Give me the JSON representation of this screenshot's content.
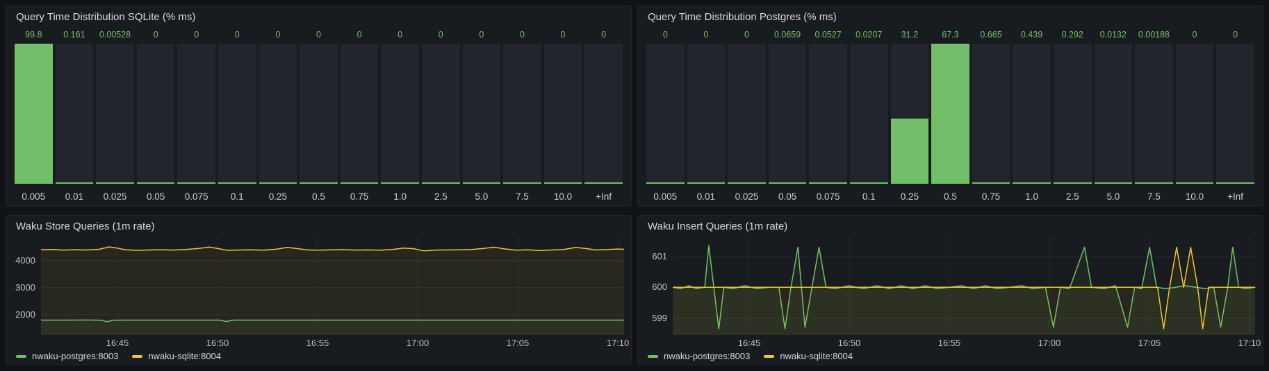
{
  "colors": {
    "page_bg": "#111217",
    "panel_bg": "#181b1f",
    "bar_track_bg": "#22252b",
    "green": "#73bf69",
    "yellow": "#edc82f",
    "title_text": "#d8d9da",
    "axis_text": "#c0c1c7"
  },
  "chart_data": [
    {
      "type": "bar",
      "title": "Query Time Distribution SQLite (% ms)",
      "categories": [
        "0.005",
        "0.01",
        "0.025",
        "0.05",
        "0.075",
        "0.1",
        "0.25",
        "0.5",
        "0.75",
        "1.0",
        "2.5",
        "5.0",
        "7.5",
        "10.0",
        "+Inf"
      ],
      "values": [
        99.8,
        0.161,
        0.00528,
        0,
        0,
        0,
        0,
        0,
        0,
        0,
        0,
        0,
        0,
        0,
        0
      ],
      "value_labels": [
        "99.8",
        "0.161",
        "0.00528",
        "0",
        "0",
        "0",
        "0",
        "0",
        "0",
        "0",
        "0",
        "0",
        "0",
        "0",
        "0"
      ],
      "max": 99.8,
      "bar_color": "#73bf69",
      "xlabel": "",
      "ylabel": ""
    },
    {
      "type": "bar",
      "title": "Query Time Distribution Postgres (% ms)",
      "categories": [
        "0.005",
        "0.01",
        "0.025",
        "0.05",
        "0.075",
        "0.1",
        "0.25",
        "0.5",
        "0.75",
        "1.0",
        "2.5",
        "5.0",
        "7.5",
        "10.0",
        "+Inf"
      ],
      "values": [
        0,
        0,
        0,
        0.0659,
        0.0527,
        0.0207,
        31.2,
        67.3,
        0.665,
        0.439,
        0.292,
        0.0132,
        0.00188,
        0,
        0
      ],
      "value_labels": [
        "0",
        "0",
        "0",
        "0.0659",
        "0.0527",
        "0.0207",
        "31.2",
        "67.3",
        "0.665",
        "0.439",
        "0.292",
        "0.0132",
        "0.00188",
        "0",
        "0"
      ],
      "max": 67.3,
      "bar_color": "#73bf69",
      "xlabel": "",
      "ylabel": ""
    },
    {
      "type": "line",
      "title": "Waku Store Queries (1m rate)",
      "x_domain": [
        1.2,
        30.3
      ],
      "y_domain": [
        1250,
        4900
      ],
      "x_ticks": [
        {
          "t": 5,
          "label": "16:45"
        },
        {
          "t": 10,
          "label": "16:50"
        },
        {
          "t": 15,
          "label": "16:55"
        },
        {
          "t": 20,
          "label": "17:00"
        },
        {
          "t": 25,
          "label": "17:05"
        },
        {
          "t": 30,
          "label": "17:10"
        }
      ],
      "y_ticks": [
        {
          "v": 2000,
          "label": "2000"
        },
        {
          "v": 3000,
          "label": "3000"
        },
        {
          "v": 4000,
          "label": "4000"
        }
      ],
      "series": [
        {
          "name": "nwaku-postgres:8003",
          "color": "#73bf69",
          "points": [
            [
              1.2,
              1800
            ],
            [
              2.4,
              1800
            ],
            [
              3.6,
              1802
            ],
            [
              4.2,
              1798
            ],
            [
              4.5,
              1742
            ],
            [
              4.8,
              1796
            ],
            [
              5.4,
              1800
            ],
            [
              7,
              1800
            ],
            [
              9,
              1801
            ],
            [
              10.1,
              1800
            ],
            [
              10.45,
              1748
            ],
            [
              10.8,
              1799
            ],
            [
              12,
              1800
            ],
            [
              14,
              1801
            ],
            [
              16,
              1799
            ],
            [
              18,
              1800
            ],
            [
              20,
              1801
            ],
            [
              22,
              1799
            ],
            [
              24,
              1800
            ],
            [
              26,
              1801
            ],
            [
              28,
              1799
            ],
            [
              30.3,
              1800
            ]
          ]
        },
        {
          "name": "nwaku-sqlite:8004",
          "color": "#edc82f",
          "points": [
            [
              1.2,
              4410
            ],
            [
              1.8,
              4420
            ],
            [
              2.3,
              4395
            ],
            [
              2.9,
              4410
            ],
            [
              3.5,
              4400
            ],
            [
              4.1,
              4425
            ],
            [
              4.6,
              4515
            ],
            [
              5.0,
              4470
            ],
            [
              5.4,
              4410
            ],
            [
              6.0,
              4385
            ],
            [
              6.6,
              4400
            ],
            [
              7.2,
              4408
            ],
            [
              7.8,
              4395
            ],
            [
              8.4,
              4418
            ],
            [
              9.0,
              4450
            ],
            [
              9.6,
              4510
            ],
            [
              10.1,
              4445
            ],
            [
              10.5,
              4385
            ],
            [
              11.1,
              4400
            ],
            [
              11.7,
              4406
            ],
            [
              12.3,
              4394
            ],
            [
              12.9,
              4425
            ],
            [
              13.5,
              4495
            ],
            [
              14.0,
              4450
            ],
            [
              14.5,
              4402
            ],
            [
              15.1,
              4390
            ],
            [
              15.7,
              4403
            ],
            [
              16.3,
              4412
            ],
            [
              16.9,
              4396
            ],
            [
              17.5,
              4402
            ],
            [
              18.1,
              4392
            ],
            [
              18.7,
              4415
            ],
            [
              19.3,
              4470
            ],
            [
              19.8,
              4448
            ],
            [
              20.3,
              4365
            ],
            [
              20.9,
              4395
            ],
            [
              21.5,
              4402
            ],
            [
              22.1,
              4406
            ],
            [
              22.7,
              4420
            ],
            [
              23.3,
              4455
            ],
            [
              23.8,
              4505
            ],
            [
              24.3,
              4445
            ],
            [
              24.9,
              4392
            ],
            [
              25.5,
              4403
            ],
            [
              26.1,
              4382
            ],
            [
              26.7,
              4400
            ],
            [
              27.3,
              4418
            ],
            [
              27.9,
              4495
            ],
            [
              28.4,
              4452
            ],
            [
              28.9,
              4400
            ],
            [
              29.5,
              4418
            ],
            [
              30.0,
              4435
            ],
            [
              30.3,
              4425
            ]
          ]
        }
      ]
    },
    {
      "type": "line",
      "title": "Waku Insert Queries (1m rate)",
      "x_domain": [
        1.2,
        30.3
      ],
      "y_domain": [
        598.45,
        601.65
      ],
      "x_ticks": [
        {
          "t": 5,
          "label": "16:45"
        },
        {
          "t": 10,
          "label": "16:50"
        },
        {
          "t": 15,
          "label": "16:55"
        },
        {
          "t": 20,
          "label": "17:00"
        },
        {
          "t": 25,
          "label": "17:05"
        },
        {
          "t": 30,
          "label": "17:10"
        }
      ],
      "y_ticks": [
        {
          "v": 599,
          "label": "599"
        },
        {
          "v": 600,
          "label": "600"
        },
        {
          "v": 601,
          "label": "601"
        }
      ],
      "series": [
        {
          "name": "nwaku-postgres:8003",
          "color": "#73bf69",
          "points": [
            [
              1.2,
              600
            ],
            [
              1.6,
              599.95
            ],
            [
              2.0,
              600.05
            ],
            [
              2.4,
              599.95
            ],
            [
              2.8,
              600
            ],
            [
              3.0,
              601.35
            ],
            [
              3.25,
              600
            ],
            [
              3.5,
              598.65
            ],
            [
              3.75,
              600
            ],
            [
              4.2,
              599.95
            ],
            [
              4.8,
              600.05
            ],
            [
              5.4,
              599.95
            ],
            [
              6.0,
              600
            ],
            [
              6.5,
              600
            ],
            [
              6.8,
              598.65
            ],
            [
              7.1,
              600
            ],
            [
              7.45,
              601.3
            ],
            [
              7.8,
              598.7
            ],
            [
              8.15,
              600
            ],
            [
              8.5,
              601.3
            ],
            [
              8.85,
              600
            ],
            [
              9.3,
              599.95
            ],
            [
              10,
              600.05
            ],
            [
              10.7,
              599.95
            ],
            [
              11.4,
              600.05
            ],
            [
              12,
              599.95
            ],
            [
              12.6,
              600.05
            ],
            [
              13.2,
              599.95
            ],
            [
              13.8,
              600.05
            ],
            [
              14.4,
              599.95
            ],
            [
              15,
              600
            ],
            [
              15.6,
              600.05
            ],
            [
              16.2,
              599.95
            ],
            [
              16.8,
              600.05
            ],
            [
              17.4,
              599.95
            ],
            [
              18,
              600
            ],
            [
              18.6,
              600.05
            ],
            [
              19.2,
              599.95
            ],
            [
              19.8,
              600
            ],
            [
              20.2,
              598.7
            ],
            [
              20.55,
              600
            ],
            [
              21,
              599.95
            ],
            [
              21.75,
              601.3
            ],
            [
              22.1,
              600
            ],
            [
              22.7,
              599.95
            ],
            [
              23.3,
              600.05
            ],
            [
              23.9,
              598.7
            ],
            [
              24.25,
              600
            ],
            [
              24.6,
              599.95
            ],
            [
              25.0,
              601.3
            ],
            [
              25.35,
              600
            ],
            [
              25.8,
              599.95
            ],
            [
              26.3,
              600
            ],
            [
              26.8,
              600.05
            ],
            [
              27.3,
              600
            ],
            [
              27.8,
              599.95
            ],
            [
              28.2,
              600
            ],
            [
              28.55,
              598.7
            ],
            [
              28.9,
              600
            ],
            [
              29.15,
              601.3
            ],
            [
              29.45,
              600
            ],
            [
              29.8,
              599.95
            ],
            [
              30.25,
              600
            ]
          ]
        },
        {
          "name": "nwaku-sqlite:8004",
          "color": "#edc82f",
          "points": [
            [
              1.2,
              600
            ],
            [
              5,
              600
            ],
            [
              10,
              600
            ],
            [
              15,
              600
            ],
            [
              20,
              600
            ],
            [
              24,
              600
            ],
            [
              25.4,
              600
            ],
            [
              25.7,
              598.65
            ],
            [
              26.0,
              600
            ],
            [
              26.35,
              601.3
            ],
            [
              26.7,
              600
            ],
            [
              27.05,
              601.3
            ],
            [
              27.4,
              600
            ],
            [
              27.65,
              598.65
            ],
            [
              27.95,
              600
            ],
            [
              28.5,
              600
            ],
            [
              29.5,
              600
            ],
            [
              30.25,
              600
            ]
          ]
        }
      ]
    }
  ]
}
